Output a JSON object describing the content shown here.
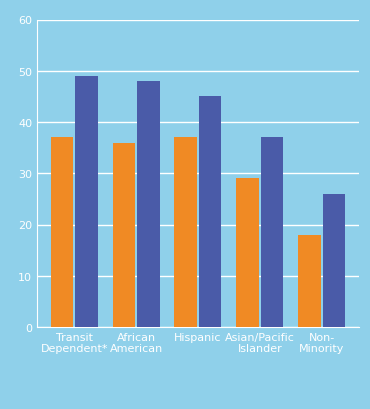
{
  "chart_data": {
    "type": "bar",
    "categories": [
      "Transit Dependent*",
      "African American",
      "Hispanic",
      "Asian/Pacific Islander",
      "Non-Minority"
    ],
    "series": [
      {
        "color": "#f08a24",
        "values": [
          37,
          36,
          37,
          29,
          18
        ]
      },
      {
        "color": "#4a5ba8",
        "values": [
          49,
          48,
          45,
          37,
          26
        ]
      }
    ],
    "ylim": [
      0,
      60
    ],
    "yticks": [
      0,
      10,
      20,
      30,
      40,
      50,
      60
    ],
    "grid": true
  }
}
